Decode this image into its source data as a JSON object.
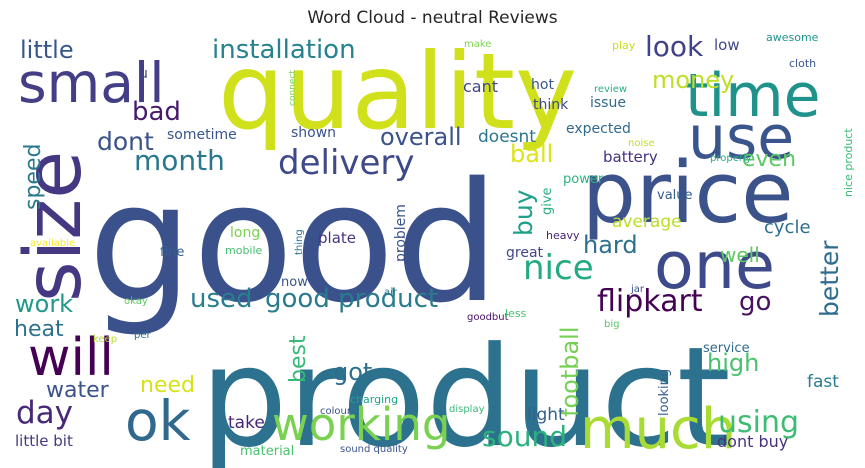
{
  "title": "Word Cloud - neutral Reviews",
  "words": [
    {
      "text": "good",
      "color": "#3b518b"
    },
    {
      "text": "product",
      "color": "#2c728e"
    },
    {
      "text": "quality",
      "color": "#d0e11c"
    },
    {
      "text": "price",
      "color": "#3b528b"
    },
    {
      "text": "size",
      "color": "#453781"
    },
    {
      "text": "one",
      "color": "#3e4a89"
    },
    {
      "text": "time",
      "color": "#20928c"
    },
    {
      "text": "use",
      "color": "#39558c"
    },
    {
      "text": "small",
      "color": "#433e85"
    },
    {
      "text": "much",
      "color": "#a8db34"
    },
    {
      "text": "working",
      "color": "#7ad151"
    },
    {
      "text": "will",
      "color": "#440154"
    },
    {
      "text": "ok",
      "color": "#31688e"
    },
    {
      "text": "delivery",
      "color": "#3e4989"
    },
    {
      "text": "installation",
      "color": "#26828e"
    },
    {
      "text": "month",
      "color": "#2a788e"
    },
    {
      "text": "nice",
      "color": "#25ab82"
    },
    {
      "text": "good product",
      "color": "#297b8e"
    },
    {
      "text": "flipkart",
      "color": "#440154"
    },
    {
      "text": "day",
      "color": "#482878"
    },
    {
      "text": "sound",
      "color": "#2db27d"
    },
    {
      "text": "using",
      "color": "#3fbc73"
    },
    {
      "text": "money",
      "color": "#bddf26"
    },
    {
      "text": "look",
      "color": "#404387"
    },
    {
      "text": "overall",
      "color": "#3b528b"
    },
    {
      "text": "dont",
      "color": "#3b528b"
    },
    {
      "text": "bad",
      "color": "#481a6c"
    },
    {
      "text": "little",
      "color": "#39568c"
    },
    {
      "text": "work",
      "color": "#1f998a"
    },
    {
      "text": "used",
      "color": "#287d8e"
    },
    {
      "text": "hard",
      "color": "#2d708e"
    },
    {
      "text": "buy",
      "color": "#1fa088"
    },
    {
      "text": "better",
      "color": "#2f6c8e"
    },
    {
      "text": "even",
      "color": "#5cc863"
    },
    {
      "text": "ball",
      "color": "#dde318"
    },
    {
      "text": "speed",
      "color": "#2a788e"
    },
    {
      "text": "heat",
      "color": "#2c728e"
    },
    {
      "text": "water",
      "color": "#3b528b"
    },
    {
      "text": "need",
      "color": "#d8e219"
    },
    {
      "text": "best",
      "color": "#38b977"
    },
    {
      "text": "got",
      "color": "#2e6e8e"
    },
    {
      "text": "high",
      "color": "#4ac16d"
    },
    {
      "text": "football",
      "color": "#75d054"
    },
    {
      "text": "go",
      "color": "#471164"
    },
    {
      "text": "cycle",
      "color": "#2d708e"
    },
    {
      "text": "well",
      "color": "#5ec962"
    },
    {
      "text": "average",
      "color": "#bade28"
    },
    {
      "text": "fast",
      "color": "#287c8e"
    },
    {
      "text": "light",
      "color": "#34608d"
    },
    {
      "text": "take",
      "color": "#482677"
    },
    {
      "text": "little bit",
      "color": "#453781"
    },
    {
      "text": "dont buy",
      "color": "#46337f"
    },
    {
      "text": "doesnt",
      "color": "#2a768e"
    },
    {
      "text": "cant",
      "color": "#404688"
    },
    {
      "text": "hot",
      "color": "#39568c"
    },
    {
      "text": "think",
      "color": "#3e4989"
    },
    {
      "text": "issue",
      "color": "#31688e"
    },
    {
      "text": "battery",
      "color": "#46327e"
    },
    {
      "text": "expected",
      "color": "#306a8e"
    },
    {
      "text": "sometime",
      "color": "#3a548c"
    },
    {
      "text": "shown",
      "color": "#3b528b"
    },
    {
      "text": "low",
      "color": "#3e4a89"
    },
    {
      "text": "awesome",
      "color": "#20938c"
    },
    {
      "text": "cloth",
      "color": "#3a538b"
    },
    {
      "text": "make",
      "color": "#7fd34e"
    },
    {
      "text": "play",
      "color": "#c8e020"
    },
    {
      "text": "review",
      "color": "#28ae80"
    },
    {
      "text": "connect",
      "color": "#7ad151"
    },
    {
      "text": "u",
      "color": "#414487"
    },
    {
      "text": "noise",
      "color": "#c0df25"
    },
    {
      "text": "power",
      "color": "#2db27d"
    },
    {
      "text": "give",
      "color": "#29af7f"
    },
    {
      "text": "value",
      "color": "#365c8d"
    },
    {
      "text": "nice product",
      "color": "#3bbb75"
    },
    {
      "text": "properly",
      "color": "#27ad81"
    },
    {
      "text": "problem",
      "color": "#3a548c"
    },
    {
      "text": "plate",
      "color": "#453581"
    },
    {
      "text": "long",
      "color": "#7ad151"
    },
    {
      "text": "thing",
      "color": "#2c718e"
    },
    {
      "text": "mobile",
      "color": "#44bf70"
    },
    {
      "text": "fine",
      "color": "#35608d"
    },
    {
      "text": "available",
      "color": "#fde725"
    },
    {
      "text": "now",
      "color": "#39558c"
    },
    {
      "text": "great",
      "color": "#3f4788"
    },
    {
      "text": "heavy",
      "color": "#482475"
    },
    {
      "text": "air",
      "color": "#2b758e"
    },
    {
      "text": "okay",
      "color": "#5ec962"
    },
    {
      "text": "per",
      "color": "#2c738e"
    },
    {
      "text": "keep",
      "color": "#b5de2b"
    },
    {
      "text": "goodbut",
      "color": "#471063"
    },
    {
      "text": "less",
      "color": "#44bf70"
    },
    {
      "text": "jar",
      "color": "#3b528b"
    },
    {
      "text": "big",
      "color": "#56c667"
    },
    {
      "text": "looking",
      "color": "#355f8d"
    },
    {
      "text": "service",
      "color": "#2f6b8e"
    },
    {
      "text": "charging",
      "color": "#1fa188"
    },
    {
      "text": "colour",
      "color": "#3a548c"
    },
    {
      "text": "display",
      "color": "#38b977"
    },
    {
      "text": "material",
      "color": "#4ac16d"
    },
    {
      "text": "sound quality",
      "color": "#39558c"
    }
  ]
}
